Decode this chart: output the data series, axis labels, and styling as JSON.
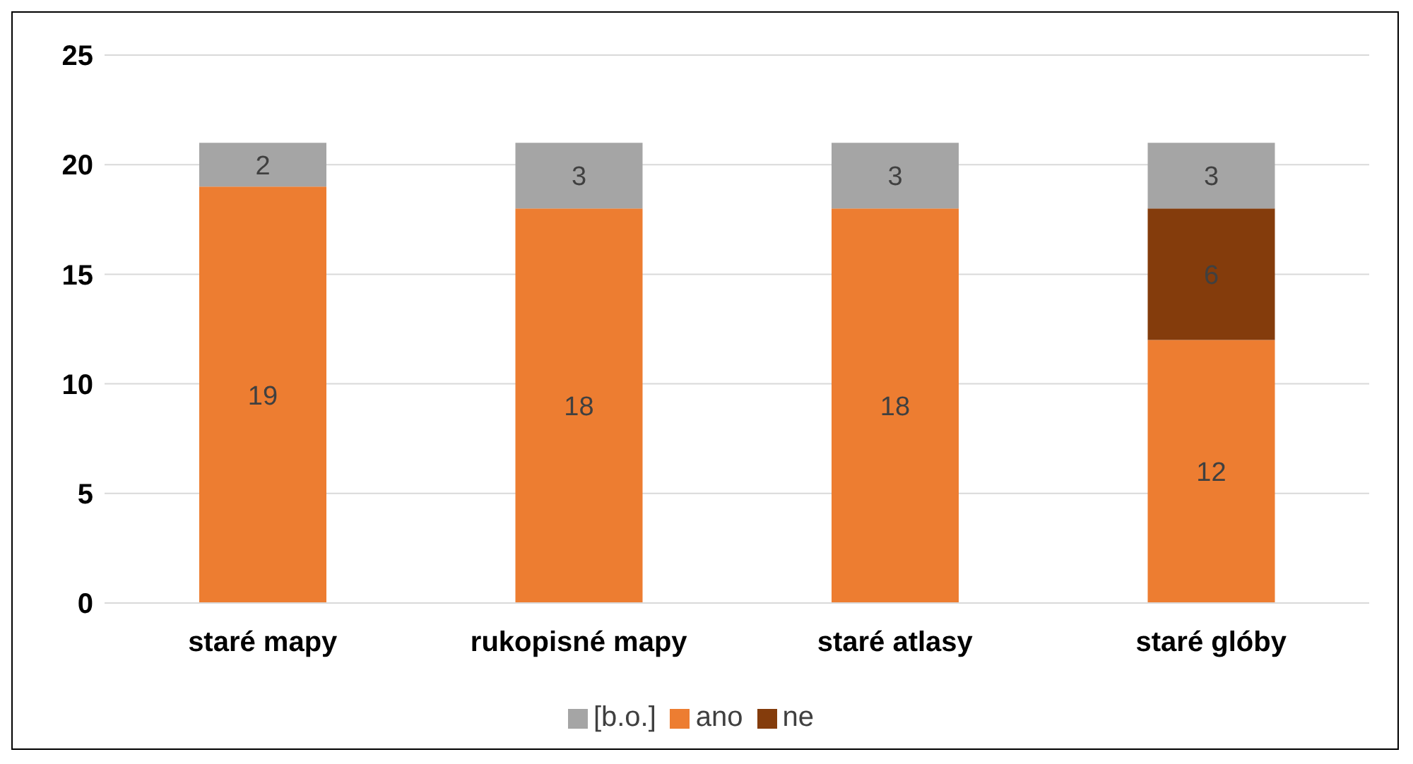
{
  "chart_data": {
    "type": "bar",
    "stacked": true,
    "categories": [
      "staré mapy",
      "rukopisné mapy",
      "staré atlasy",
      "staré glóby"
    ],
    "series": [
      {
        "name": "ano",
        "color": "#ed7d31",
        "values": [
          19,
          18,
          18,
          12
        ]
      },
      {
        "name": "ne",
        "color": "#843c0c",
        "values": [
          null,
          null,
          null,
          6
        ]
      },
      {
        "name": "[b.o.]",
        "color": "#a5a5a5",
        "values": [
          2,
          3,
          3,
          3
        ]
      }
    ],
    "ylim": [
      0,
      25
    ],
    "yticks": [
      0,
      5,
      10,
      15,
      20,
      25
    ],
    "grid": "y",
    "legend": "bottom",
    "data_labels": true
  }
}
